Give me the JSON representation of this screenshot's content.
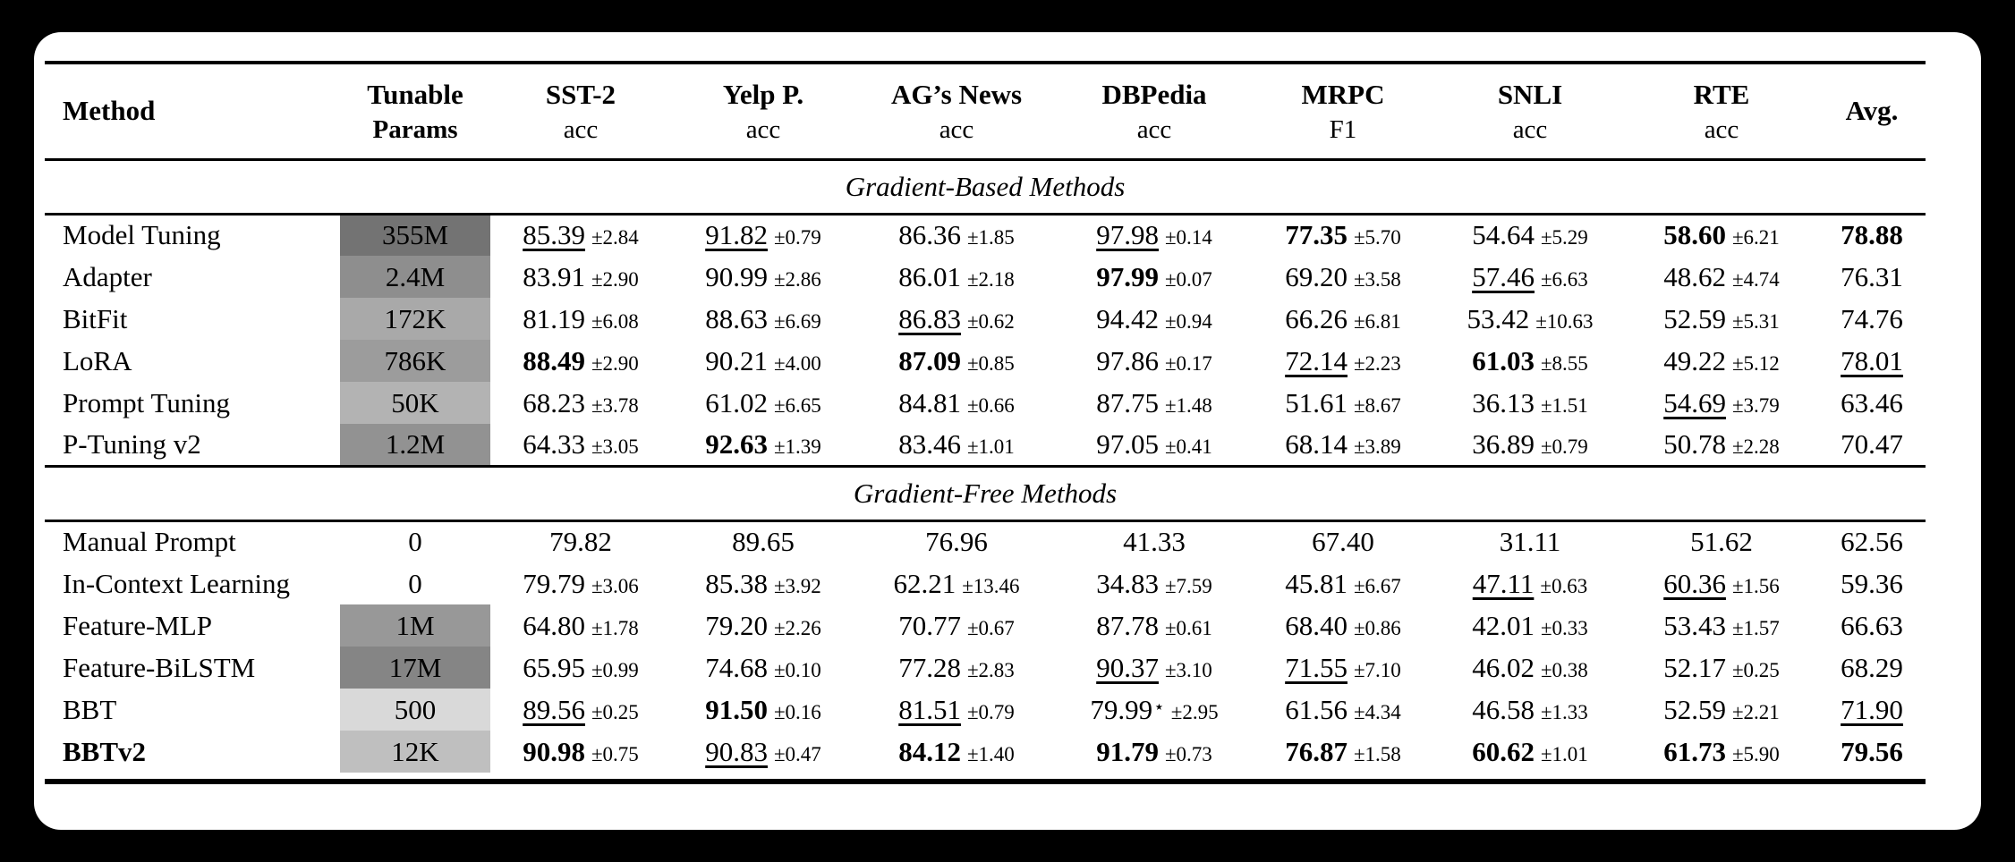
{
  "colors": {
    "page_background": "#000000",
    "card_background": "#ffffff",
    "text": "#000000"
  },
  "table": {
    "columns": [
      {
        "label": "Method",
        "sub": ""
      },
      {
        "label": "Tunable",
        "sub": "Params",
        "sub_bold": true
      },
      {
        "label": "SST-2",
        "sub": "acc"
      },
      {
        "label": "Yelp P.",
        "sub": "acc"
      },
      {
        "label": "AG’s News",
        "sub": "acc"
      },
      {
        "label": "DBPedia",
        "sub": "acc"
      },
      {
        "label": "MRPC",
        "sub": "F1"
      },
      {
        "label": "SNLI",
        "sub": "acc"
      },
      {
        "label": "RTE",
        "sub": "acc"
      },
      {
        "label": "Avg.",
        "sub": ""
      }
    ],
    "sections": [
      {
        "title": "Gradient-Based Methods",
        "rows": [
          {
            "method": "Model Tuning",
            "params": "355M",
            "params_bg": "#737373",
            "cells": [
              {
                "v": "85.39",
                "e": "±2.84",
                "u": true
              },
              {
                "v": "91.82",
                "e": "±0.79",
                "u": true
              },
              {
                "v": "86.36",
                "e": "±1.85"
              },
              {
                "v": "97.98",
                "e": "±0.14",
                "u": true
              },
              {
                "v": "77.35",
                "e": "±5.70",
                "b": true
              },
              {
                "v": "54.64",
                "e": "±5.29"
              },
              {
                "v": "58.60",
                "e": "±6.21",
                "b": true
              },
              {
                "v": "78.88",
                "b": true
              }
            ]
          },
          {
            "method": "Adapter",
            "params": "2.4M",
            "params_bg": "#8e8e8e",
            "cells": [
              {
                "v": "83.91",
                "e": "±2.90"
              },
              {
                "v": "90.99",
                "e": "±2.86"
              },
              {
                "v": "86.01",
                "e": "±2.18"
              },
              {
                "v": "97.99",
                "e": "±0.07",
                "b": true
              },
              {
                "v": "69.20",
                "e": "±3.58"
              },
              {
                "v": "57.46",
                "e": "±6.63",
                "u": true
              },
              {
                "v": "48.62",
                "e": "±4.74"
              },
              {
                "v": "76.31"
              }
            ]
          },
          {
            "method": "BitFit",
            "params": "172K",
            "params_bg": "#a9a9a9",
            "cells": [
              {
                "v": "81.19",
                "e": "±6.08"
              },
              {
                "v": "88.63",
                "e": "±6.69"
              },
              {
                "v": "86.83",
                "e": "±0.62",
                "u": true
              },
              {
                "v": "94.42",
                "e": "±0.94"
              },
              {
                "v": "66.26",
                "e": "±6.81"
              },
              {
                "v": "53.42",
                "e": "±10.63"
              },
              {
                "v": "52.59",
                "e": "±5.31"
              },
              {
                "v": "74.76"
              }
            ]
          },
          {
            "method": "LoRA",
            "params": "786K",
            "params_bg": "#9c9c9c",
            "cells": [
              {
                "v": "88.49",
                "e": "±2.90",
                "b": true
              },
              {
                "v": "90.21",
                "e": "±4.00"
              },
              {
                "v": "87.09",
                "e": "±0.85",
                "b": true
              },
              {
                "v": "97.86",
                "e": "±0.17"
              },
              {
                "v": "72.14",
                "e": "±2.23",
                "u": true
              },
              {
                "v": "61.03",
                "e": "±8.55",
                "b": true
              },
              {
                "v": "49.22",
                "e": "±5.12"
              },
              {
                "v": "78.01",
                "u": true
              }
            ]
          },
          {
            "method": "Prompt Tuning",
            "params": "50K",
            "params_bg": "#b3b3b3",
            "cells": [
              {
                "v": "68.23",
                "e": "±3.78"
              },
              {
                "v": "61.02",
                "e": "±6.65"
              },
              {
                "v": "84.81",
                "e": "±0.66"
              },
              {
                "v": "87.75",
                "e": "±1.48"
              },
              {
                "v": "51.61",
                "e": "±8.67"
              },
              {
                "v": "36.13",
                "e": "±1.51"
              },
              {
                "v": "54.69",
                "e": "±3.79",
                "u": true
              },
              {
                "v": "63.46"
              }
            ]
          },
          {
            "method": "P-Tuning v2",
            "params": "1.2M",
            "params_bg": "#929292",
            "cells": [
              {
                "v": "64.33",
                "e": "±3.05"
              },
              {
                "v": "92.63",
                "e": "±1.39",
                "b": true
              },
              {
                "v": "83.46",
                "e": "±1.01"
              },
              {
                "v": "97.05",
                "e": "±0.41"
              },
              {
                "v": "68.14",
                "e": "±3.89"
              },
              {
                "v": "36.89",
                "e": "±0.79"
              },
              {
                "v": "50.78",
                "e": "±2.28"
              },
              {
                "v": "70.47"
              }
            ]
          }
        ]
      },
      {
        "title": "Gradient-Free Methods",
        "rows": [
          {
            "method": "Manual Prompt",
            "params": "0",
            "params_bg": "",
            "cells": [
              {
                "v": "79.82"
              },
              {
                "v": "89.65"
              },
              {
                "v": "76.96"
              },
              {
                "v": "41.33"
              },
              {
                "v": "67.40"
              },
              {
                "v": "31.11"
              },
              {
                "v": "51.62"
              },
              {
                "v": "62.56"
              }
            ]
          },
          {
            "method": "In-Context Learning",
            "params": "0",
            "params_bg": "",
            "cells": [
              {
                "v": "79.79",
                "e": "±3.06"
              },
              {
                "v": "85.38",
                "e": "±3.92"
              },
              {
                "v": "62.21",
                "e": "±13.46"
              },
              {
                "v": "34.83",
                "e": "±7.59"
              },
              {
                "v": "45.81",
                "e": "±6.67"
              },
              {
                "v": "47.11",
                "e": "±0.63",
                "u": true
              },
              {
                "v": "60.36",
                "e": "±1.56",
                "u": true
              },
              {
                "v": "59.36"
              }
            ]
          },
          {
            "method": "Feature-MLP",
            "params": "1M",
            "params_bg": "#989898",
            "cells": [
              {
                "v": "64.80",
                "e": "±1.78"
              },
              {
                "v": "79.20",
                "e": "±2.26"
              },
              {
                "v": "70.77",
                "e": "±0.67"
              },
              {
                "v": "87.78",
                "e": "±0.61"
              },
              {
                "v": "68.40",
                "e": "±0.86"
              },
              {
                "v": "42.01",
                "e": "±0.33"
              },
              {
                "v": "53.43",
                "e": "±1.57"
              },
              {
                "v": "66.63"
              }
            ]
          },
          {
            "method": "Feature-BiLSTM",
            "params": "17M",
            "params_bg": "#858585",
            "cells": [
              {
                "v": "65.95",
                "e": "±0.99"
              },
              {
                "v": "74.68",
                "e": "±0.10"
              },
              {
                "v": "77.28",
                "e": "±2.83"
              },
              {
                "v": "90.37",
                "e": "±3.10",
                "u": true
              },
              {
                "v": "71.55",
                "e": "±7.10",
                "u": true
              },
              {
                "v": "46.02",
                "e": "±0.38"
              },
              {
                "v": "52.17",
                "e": "±0.25"
              },
              {
                "v": "68.29"
              }
            ]
          },
          {
            "method": "BBT",
            "params": "500",
            "params_bg": "#d9d9d9",
            "cells": [
              {
                "v": "89.56",
                "e": "±0.25",
                "u": true
              },
              {
                "v": "91.50",
                "e": "±0.16",
                "b": true
              },
              {
                "v": "81.51",
                "e": "±0.79",
                "u": true
              },
              {
                "v": "79.99",
                "e": "±2.95",
                "mark": "⋆"
              },
              {
                "v": "61.56",
                "e": "±4.34"
              },
              {
                "v": "46.58",
                "e": "±1.33"
              },
              {
                "v": "52.59",
                "e": "±2.21"
              },
              {
                "v": "71.90",
                "u": true
              }
            ]
          },
          {
            "method": "BBTv2",
            "method_bold": true,
            "params": "12K",
            "params_bg": "#bfbfbf",
            "cells": [
              {
                "v": "90.98",
                "e": "±0.75",
                "b": true
              },
              {
                "v": "90.83",
                "e": "±0.47",
                "u": true
              },
              {
                "v": "84.12",
                "e": "±1.40",
                "b": true
              },
              {
                "v": "91.79",
                "e": "±0.73",
                "b": true
              },
              {
                "v": "76.87",
                "e": "±1.58",
                "b": true
              },
              {
                "v": "60.62",
                "e": "±1.01",
                "b": true
              },
              {
                "v": "61.73",
                "e": "±5.90",
                "b": true
              },
              {
                "v": "79.56",
                "b": true
              }
            ]
          }
        ]
      }
    ]
  }
}
